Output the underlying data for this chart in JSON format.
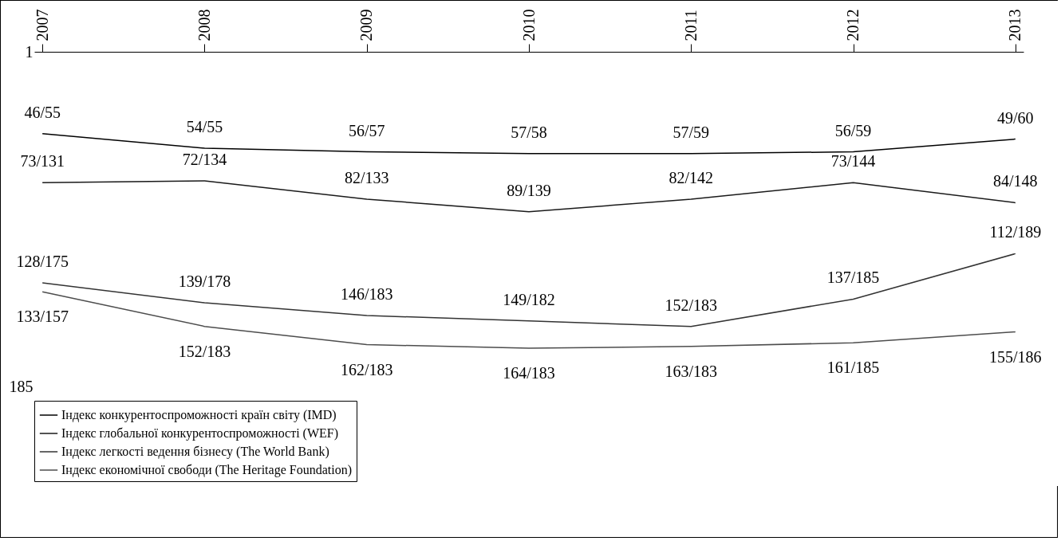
{
  "chart_data": {
    "type": "line",
    "categories": [
      "2007",
      "2008",
      "2009",
      "2010",
      "2011",
      "2012",
      "2013"
    ],
    "ylim": [
      185,
      1
    ],
    "yticks": [
      1,
      185
    ],
    "legend": "bottom",
    "line_style": "solid",
    "grid": false,
    "series": [
      {
        "name": "Індекс конкурентоспроможності країн світу (IMD)",
        "color": "#000000",
        "values": [
          46,
          54,
          56,
          57,
          57,
          56,
          49
        ],
        "value_labels": [
          "46/55",
          "54/55",
          "56/57",
          "57/58",
          "57/59",
          "56/59",
          "49/60"
        ]
      },
      {
        "name": "Індекс глобальної конкурентоспроможності (WEF)",
        "color": "#1a1a1a",
        "values": [
          73,
          72,
          82,
          89,
          82,
          73,
          84
        ],
        "value_labels": [
          "73/131",
          "72/134",
          "82/133",
          "89/139",
          "82/142",
          "73/144",
          "84/148"
        ]
      },
      {
        "name": "Індекс легкості ведення бізнесу  (The World Bank)",
        "color": "#333333",
        "values": [
          128,
          139,
          146,
          149,
          152,
          137,
          112
        ],
        "value_labels": [
          "128/175",
          "139/178",
          "146/183",
          "149/182",
          "152/183",
          "137/185",
          "112/189"
        ]
      },
      {
        "name": "Індекс економічної свободи (The Heritage Foundation)",
        "color": "#4d4d4d",
        "values": [
          133,
          152,
          162,
          164,
          163,
          161,
          155
        ],
        "value_labels": [
          "133/157",
          "152/183",
          "162/183",
          "164/183",
          "163/183",
          "161/185",
          "155/186"
        ]
      }
    ]
  }
}
